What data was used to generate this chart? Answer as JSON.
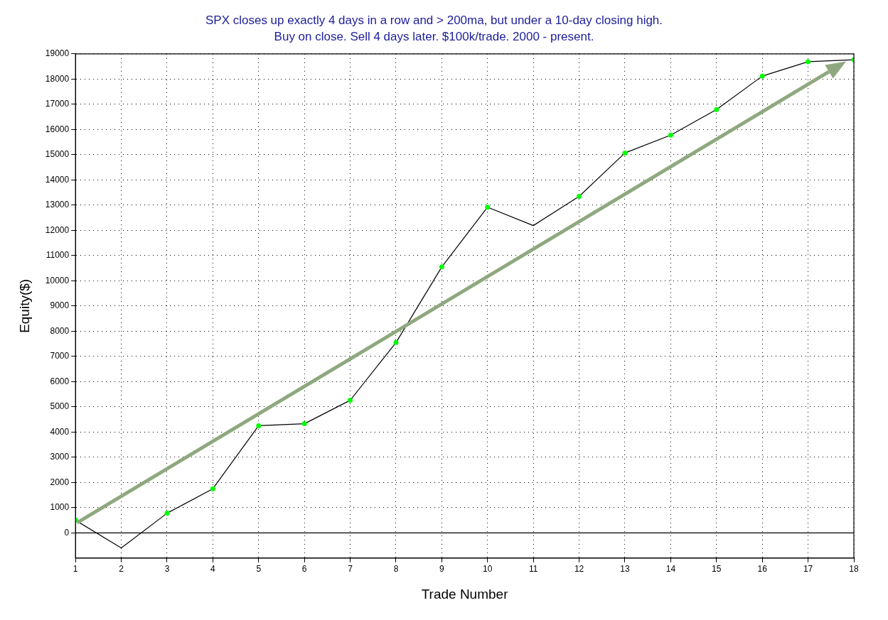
{
  "chart_data": {
    "type": "line",
    "title": [
      "SPX closes up exactly 4 days in a row and > 200ma, but under a 10-day closing high.",
      "Buy on close. Sell 4 days later. $100k/trade. 2000 - present."
    ],
    "xlabel": "Trade Number",
    "ylabel": "Equity($)",
    "x": [
      1,
      2,
      3,
      4,
      5,
      6,
      7,
      8,
      9,
      10,
      11,
      12,
      13,
      14,
      15,
      16,
      17,
      18
    ],
    "series": [
      {
        "color": "#000000",
        "marker": "none",
        "values": [
          500,
          -600,
          780,
          1750,
          4250,
          4330,
          5260,
          7550,
          10550,
          12920,
          12190,
          13350,
          15070,
          15780,
          16790,
          18120,
          18690,
          18770
        ]
      },
      {
        "type": "scatter",
        "color": "#00ff00",
        "marker": "circle",
        "x": [
          1,
          3,
          4,
          5,
          6,
          7,
          8,
          9,
          10,
          12,
          13,
          14,
          15,
          16,
          17,
          18
        ],
        "values": [
          500,
          780,
          1750,
          4250,
          4330,
          5260,
          7550,
          10550,
          12920,
          13350,
          15070,
          15780,
          16790,
          18120,
          18690,
          18770
        ]
      }
    ],
    "xlim": [
      1,
      18
    ],
    "xticks": [
      1,
      2,
      3,
      4,
      5,
      6,
      7,
      8,
      9,
      10,
      11,
      12,
      13,
      14,
      15,
      16,
      17,
      18
    ],
    "ylim": [
      -1000,
      19000
    ],
    "yticks": [
      0,
      1000,
      2000,
      3000,
      4000,
      5000,
      6000,
      7000,
      8000,
      9000,
      10000,
      11000,
      12000,
      13000,
      14000,
      15000,
      16000,
      17000,
      18000,
      19000
    ],
    "grid": true,
    "line_style": "solid",
    "legend": false,
    "ref_lines": [
      {
        "axis": "y",
        "value": 0,
        "color": "#000000",
        "line_style": "solid"
      }
    ]
  }
}
